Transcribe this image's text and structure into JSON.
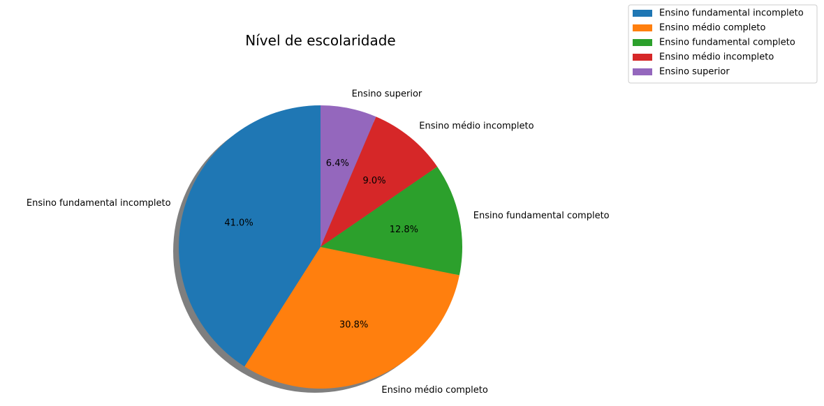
{
  "chart_data": {
    "type": "pie",
    "title": "Nível de escolaridade",
    "start_angle_deg": 90,
    "direction": "counterclockwise",
    "shadow": true,
    "legend_placement": "top-right",
    "slices": [
      {
        "label": "Ensino fundamental incompleto",
        "value": 41.0,
        "pct_label": "41.0%",
        "color": "#1f77b4"
      },
      {
        "label": "Ensino médio completo",
        "value": 30.8,
        "pct_label": "30.8%",
        "color": "#ff7f0e"
      },
      {
        "label": "Ensino fundamental completo",
        "value": 12.8,
        "pct_label": "12.8%",
        "color": "#2ca02c"
      },
      {
        "label": "Ensino médio incompleto",
        "value": 9.0,
        "pct_label": "9.0%",
        "color": "#d62728"
      },
      {
        "label": "Ensino superior",
        "value": 6.4,
        "pct_label": "6.4%",
        "color": "#9467bd"
      }
    ]
  }
}
